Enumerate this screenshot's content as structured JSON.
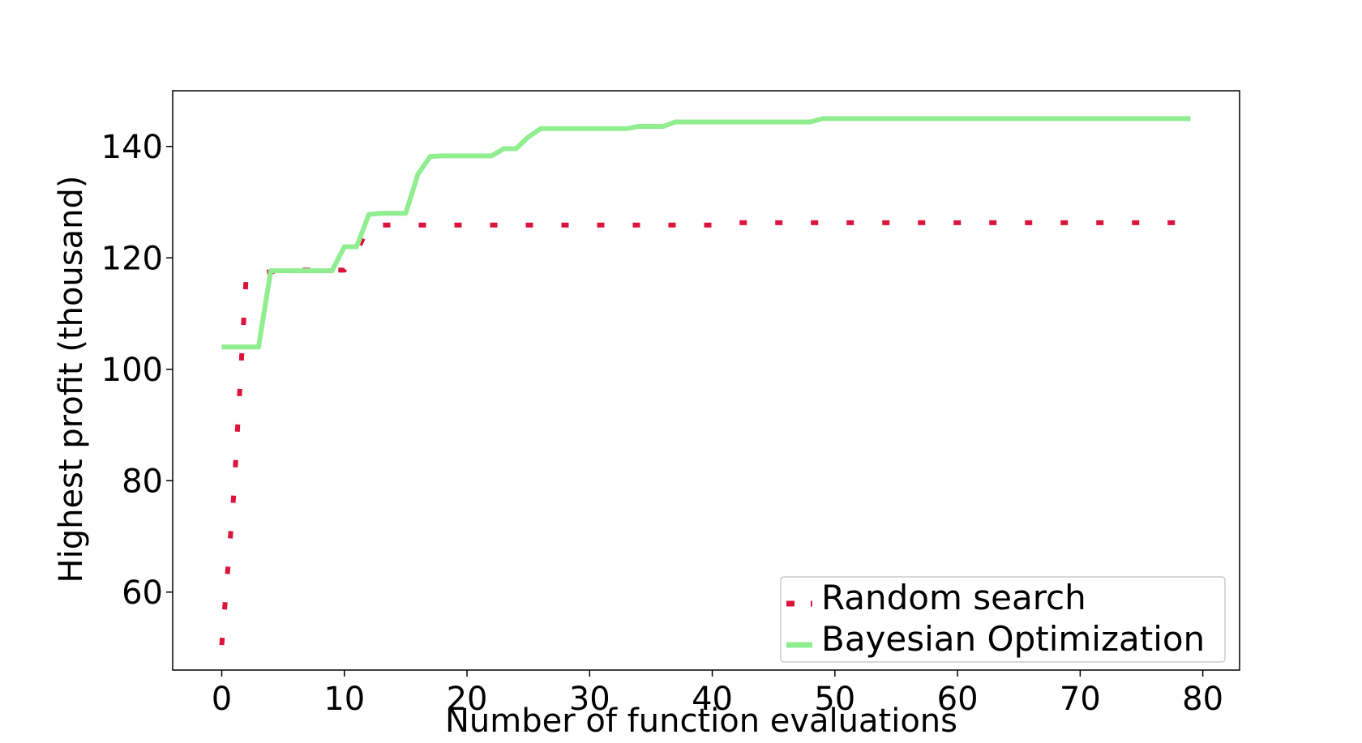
{
  "chart_data": {
    "type": "line",
    "xlabel": "Number of function evaluations",
    "ylabel": "Highest profit (thousand)",
    "xlim": [
      -4,
      83
    ],
    "ylim": [
      46,
      150
    ],
    "xticks": [
      0,
      10,
      20,
      30,
      40,
      50,
      60,
      70,
      80
    ],
    "yticks": [
      60,
      80,
      100,
      120,
      140
    ],
    "grid": false,
    "legend_position": "lower-right",
    "series": [
      {
        "name": "Random search",
        "style": "dotted",
        "color": "#dc143c",
        "x": [
          0,
          1,
          2,
          3,
          4,
          5,
          6,
          7,
          8,
          9,
          10,
          11,
          12,
          13,
          14,
          15,
          16,
          17,
          18,
          19,
          20,
          21,
          22,
          23,
          24,
          25,
          26,
          27,
          28,
          29,
          30,
          31,
          32,
          33,
          34,
          35,
          36,
          37,
          38,
          39,
          40,
          41,
          42,
          43,
          44,
          45,
          46,
          47,
          48,
          49,
          50,
          51,
          52,
          53,
          54,
          55,
          56,
          57,
          58,
          59,
          60,
          61,
          62,
          63,
          64,
          65,
          66,
          67,
          68,
          69,
          70,
          71,
          72,
          73,
          74,
          75,
          76,
          77,
          78
        ],
        "y": [
          50.5,
          78,
          117,
          117.3,
          117.5,
          117.7,
          117.8,
          117.8,
          117.8,
          117.8,
          117.8,
          121,
          125.8,
          125.9,
          125.9,
          125.9,
          125.9,
          125.9,
          125.9,
          125.9,
          125.9,
          125.9,
          125.9,
          125.9,
          125.9,
          125.9,
          125.9,
          125.9,
          125.9,
          125.9,
          125.9,
          125.9,
          125.9,
          125.9,
          125.9,
          125.9,
          125.9,
          125.9,
          125.9,
          125.9,
          125.9,
          126.3,
          126.3,
          126.3,
          126.3,
          126.3,
          126.3,
          126.3,
          126.3,
          126.3,
          126.3,
          126.3,
          126.3,
          126.3,
          126.3,
          126.3,
          126.3,
          126.3,
          126.3,
          126.3,
          126.3,
          126.3,
          126.3,
          126.3,
          126.3,
          126.3,
          126.3,
          126.3,
          126.3,
          126.3,
          126.3,
          126.3,
          126.3,
          126.3,
          126.3,
          126.3,
          126.3,
          126.3,
          126.3
        ]
      },
      {
        "name": "Bayesian Optimization",
        "style": "solid",
        "color": "#90ee90",
        "x": [
          0,
          1,
          2,
          3,
          4,
          5,
          6,
          7,
          8,
          9,
          10,
          11,
          12,
          13,
          14,
          15,
          16,
          17,
          18,
          19,
          20,
          21,
          22,
          23,
          24,
          25,
          26,
          27,
          28,
          29,
          30,
          31,
          32,
          33,
          34,
          35,
          36,
          37,
          38,
          39,
          40,
          41,
          42,
          43,
          44,
          45,
          46,
          47,
          48,
          49,
          50,
          51,
          52,
          53,
          54,
          55,
          56,
          57,
          58,
          59,
          60,
          61,
          62,
          63,
          64,
          65,
          66,
          67,
          68,
          69,
          70,
          71,
          72,
          73,
          74,
          75,
          76,
          77,
          78,
          79
        ],
        "y": [
          104,
          104,
          104,
          104,
          117.7,
          117.7,
          117.7,
          117.7,
          117.7,
          117.7,
          122,
          122,
          127.8,
          128,
          128,
          128,
          135,
          138.2,
          138.3,
          138.3,
          138.3,
          138.3,
          138.3,
          139.6,
          139.6,
          141.7,
          143.2,
          143.2,
          143.2,
          143.2,
          143.2,
          143.2,
          143.2,
          143.2,
          143.6,
          143.6,
          143.6,
          144.4,
          144.4,
          144.4,
          144.4,
          144.4,
          144.4,
          144.4,
          144.4,
          144.4,
          144.4,
          144.4,
          144.4,
          145,
          145,
          145,
          145,
          145,
          145,
          145,
          145,
          145,
          145,
          145,
          145,
          145,
          145,
          145,
          145,
          145,
          145,
          145,
          145,
          145,
          145,
          145,
          145,
          145,
          145,
          145,
          145,
          145,
          145,
          145
        ]
      }
    ]
  }
}
